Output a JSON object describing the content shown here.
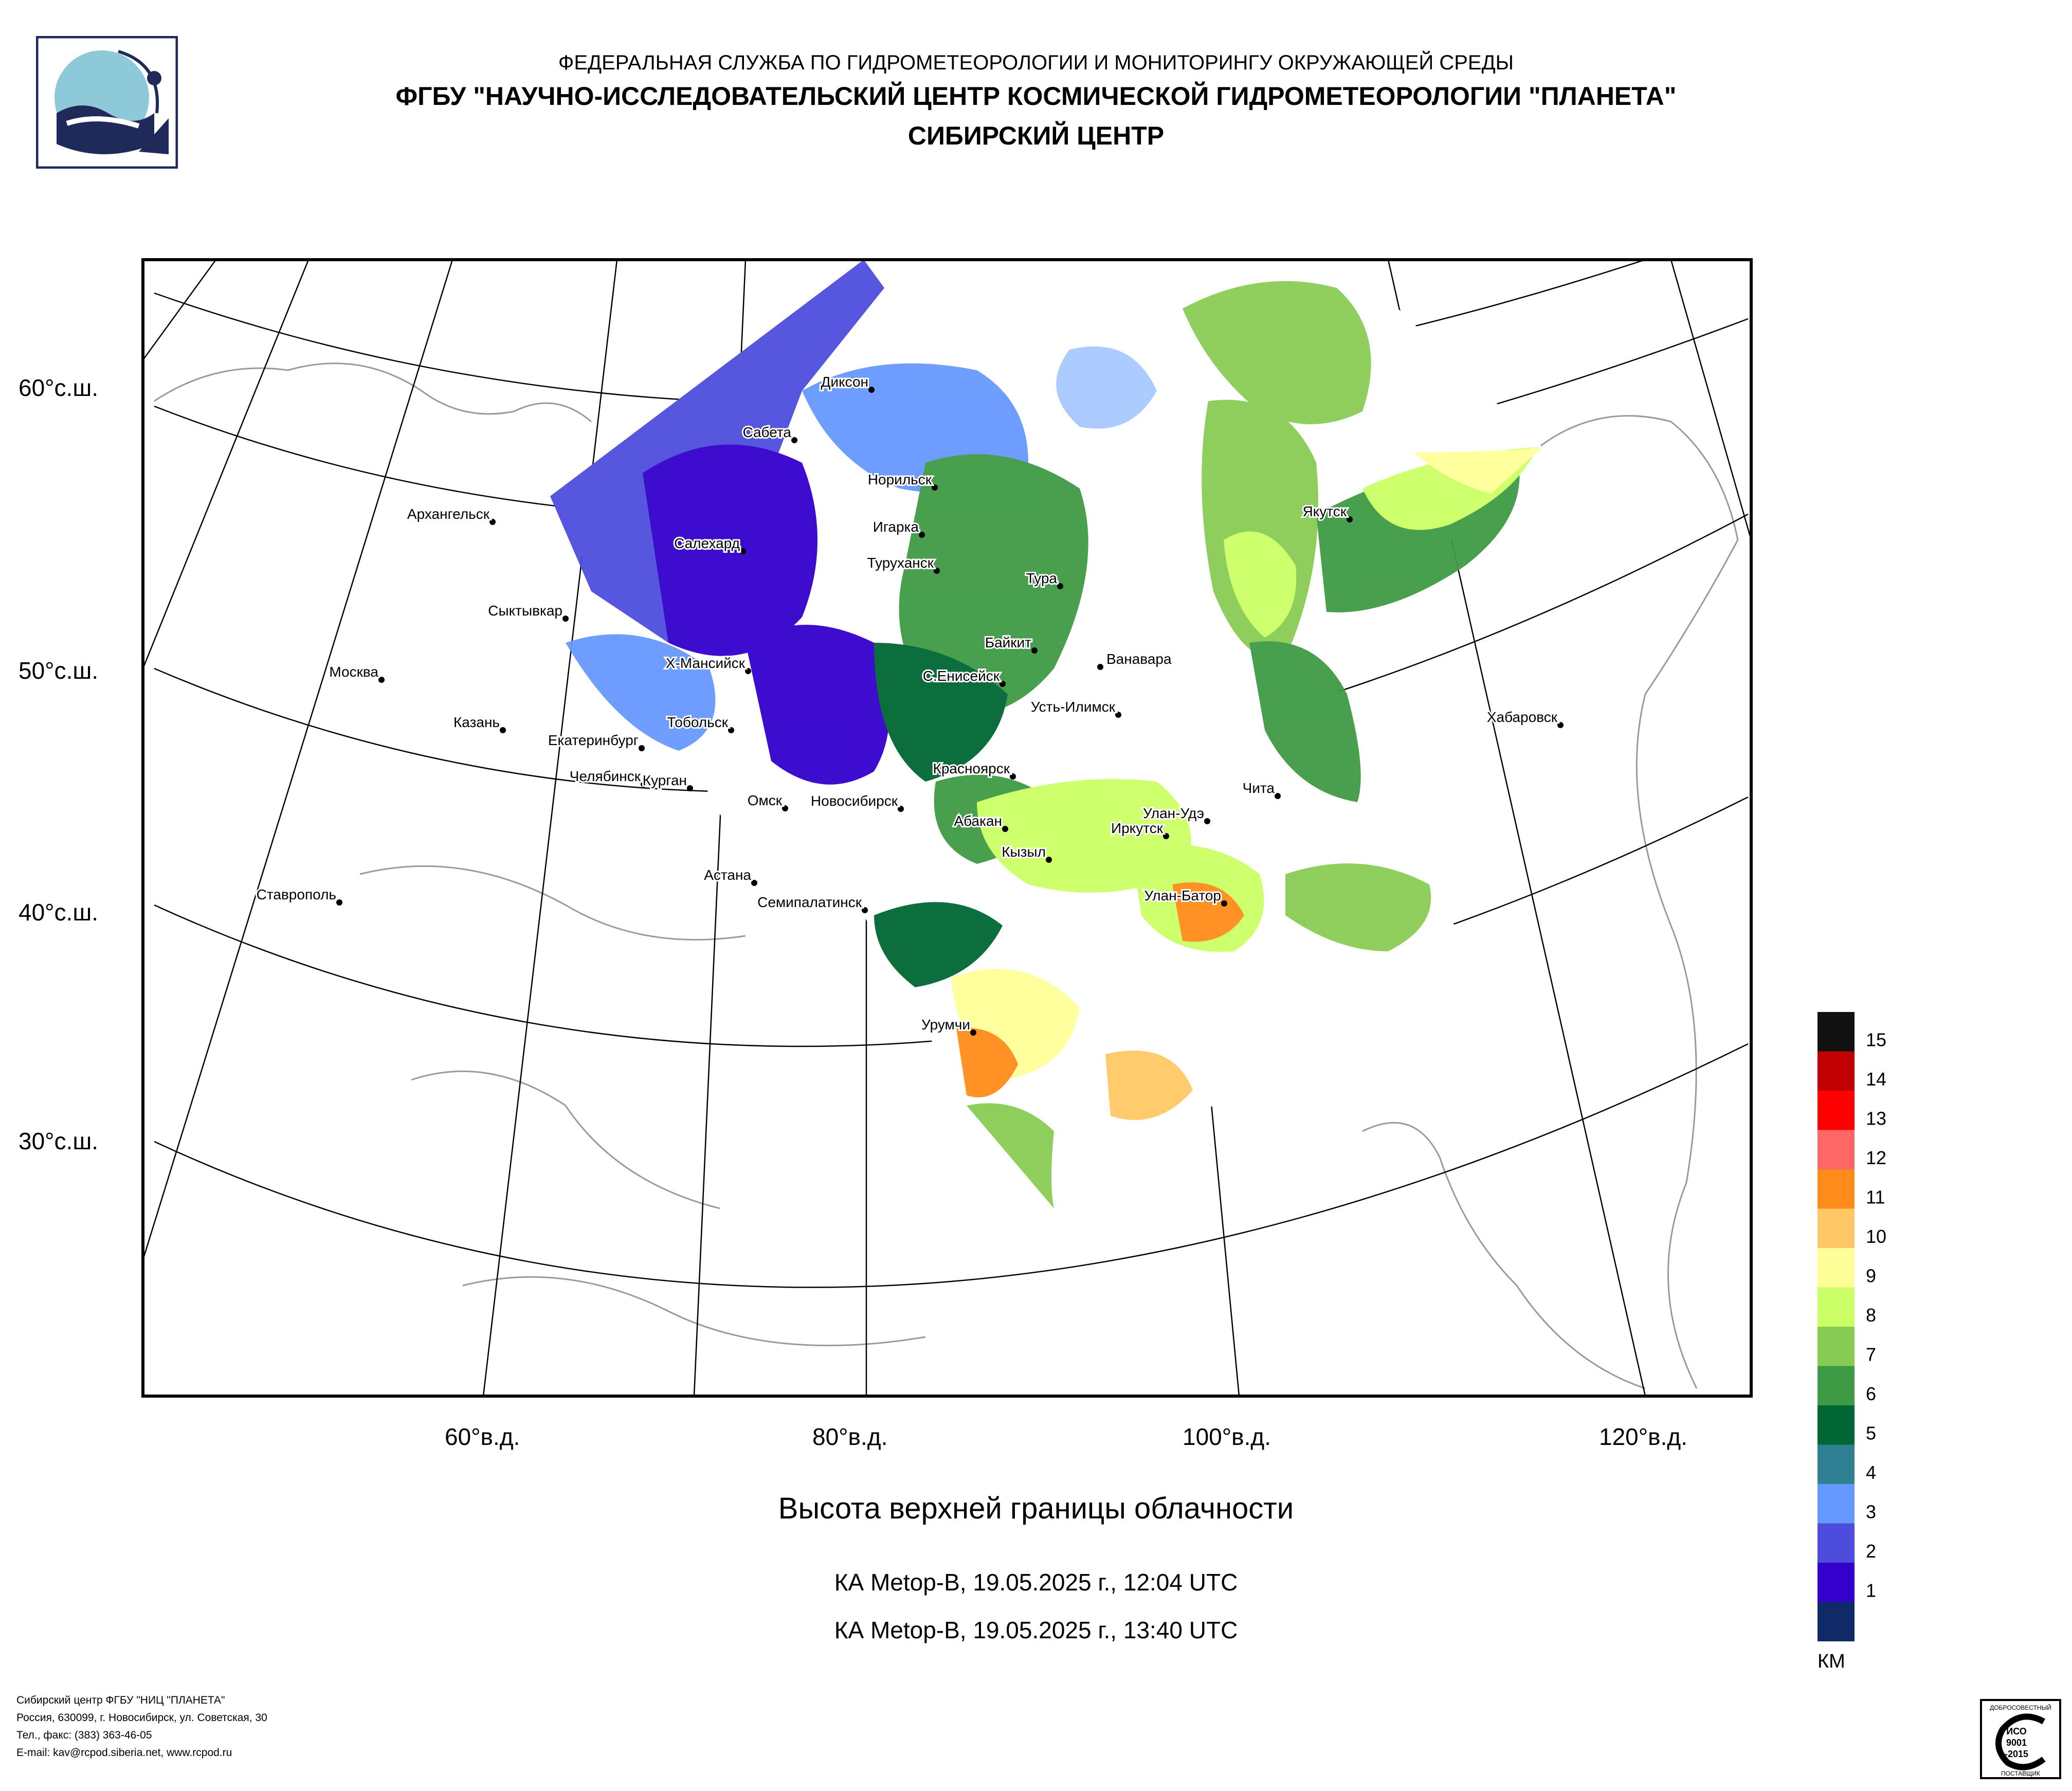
{
  "header": {
    "line1": "ФЕДЕРАЛЬНАЯ СЛУЖБА ПО ГИДРОМЕТЕОРОЛОГИИ И МОНИТОРИНГУ ОКРУЖАЮЩЕЙ СРЕДЫ",
    "line2": "ФГБУ \"НАУЧНО-ИССЛЕДОВАТЕЛЬСКИЙ ЦЕНТР КОСМИЧЕСКОЙ ГИДРОМЕТЕОРОЛОГИИ \"ПЛАНЕТА\"",
    "line3": "СИБИРСКИЙ ЦЕНТР"
  },
  "map": {
    "lat_labels": [
      "60°с.ш.",
      "50°с.ш.",
      "40°с.ш.",
      "30°с.ш."
    ],
    "lon_labels": [
      "60°в.д.",
      "80°в.д.",
      "100°в.д.",
      "120°в.д."
    ],
    "cities": [
      {
        "name": "Диксон"
      },
      {
        "name": "Сабета"
      },
      {
        "name": "Норильск"
      },
      {
        "name": "Игарка"
      },
      {
        "name": "Салехард"
      },
      {
        "name": "Туруханск"
      },
      {
        "name": "Архангельск"
      },
      {
        "name": "Сыктывкар"
      },
      {
        "name": "Тура"
      },
      {
        "name": "Якутск"
      },
      {
        "name": "Байкит"
      },
      {
        "name": "Ванавара"
      },
      {
        "name": "Москва"
      },
      {
        "name": "Х-Мансийск"
      },
      {
        "name": "С.Енисейск"
      },
      {
        "name": "Усть-Илимск"
      },
      {
        "name": "Казань"
      },
      {
        "name": "Екатеринбург"
      },
      {
        "name": "Тобольск"
      },
      {
        "name": "Хабаровск"
      },
      {
        "name": "Челябинск"
      },
      {
        "name": "Курган"
      },
      {
        "name": "Красноярск"
      },
      {
        "name": "Омск"
      },
      {
        "name": "Новосибирск"
      },
      {
        "name": "Чита"
      },
      {
        "name": "Абакан"
      },
      {
        "name": "Улан-Удэ"
      },
      {
        "name": "Иркутск"
      },
      {
        "name": "Кызыл"
      },
      {
        "name": "Ставрополь"
      },
      {
        "name": "Астана"
      },
      {
        "name": "Семипалатинск"
      },
      {
        "name": "Улан-Батор"
      },
      {
        "name": "Урумчи"
      }
    ]
  },
  "legend": {
    "units": "КМ",
    "levels": [
      {
        "label": "15",
        "color": "#111111"
      },
      {
        "label": "14",
        "color": "#c00000"
      },
      {
        "label": "13",
        "color": "#ff0000"
      },
      {
        "label": "12",
        "color": "#ff6666"
      },
      {
        "label": "11",
        "color": "#ff8c1a"
      },
      {
        "label": "10",
        "color": "#ffc864"
      },
      {
        "label": "9",
        "color": "#ffff99"
      },
      {
        "label": "8",
        "color": "#ccff66"
      },
      {
        "label": "7",
        "color": "#88cc55"
      },
      {
        "label": "6",
        "color": "#3f9a45"
      },
      {
        "label": "5",
        "color": "#006633"
      },
      {
        "label": "4",
        "color": "#2f8090"
      },
      {
        "label": "3",
        "color": "#6699ff"
      },
      {
        "label": "2",
        "color": "#4d4ddd"
      },
      {
        "label": "1",
        "color": "#3300cc"
      },
      {
        "label": "",
        "color": "#0f2a66"
      }
    ]
  },
  "title": "Высота верхней границы облачности",
  "subtitle1": "КА Metop-B, 19.05.2025 г., 12:04 UTC",
  "subtitle2": "КА Metop-B, 19.05.2025 г., 13:40 UTC",
  "footer": {
    "l1": "Сибирский центр ФГБУ \"НИЦ \"ПЛАНЕТА\"",
    "l2": "Россия, 630099, г. Новосибирск, ул. Советская, 30",
    "l3": "Тел., факс: (383) 363-46-05",
    "l4": "E-mail: kav@rcpod.siberia.net, www.rcpod.ru"
  },
  "iso_badge": {
    "top": "ДОБРОСОВЕСТНЫЙ",
    "l1": "ИСО",
    "l2": "9001",
    "l3": "-2015",
    "bottom": "ПОСТАВЩИК"
  }
}
